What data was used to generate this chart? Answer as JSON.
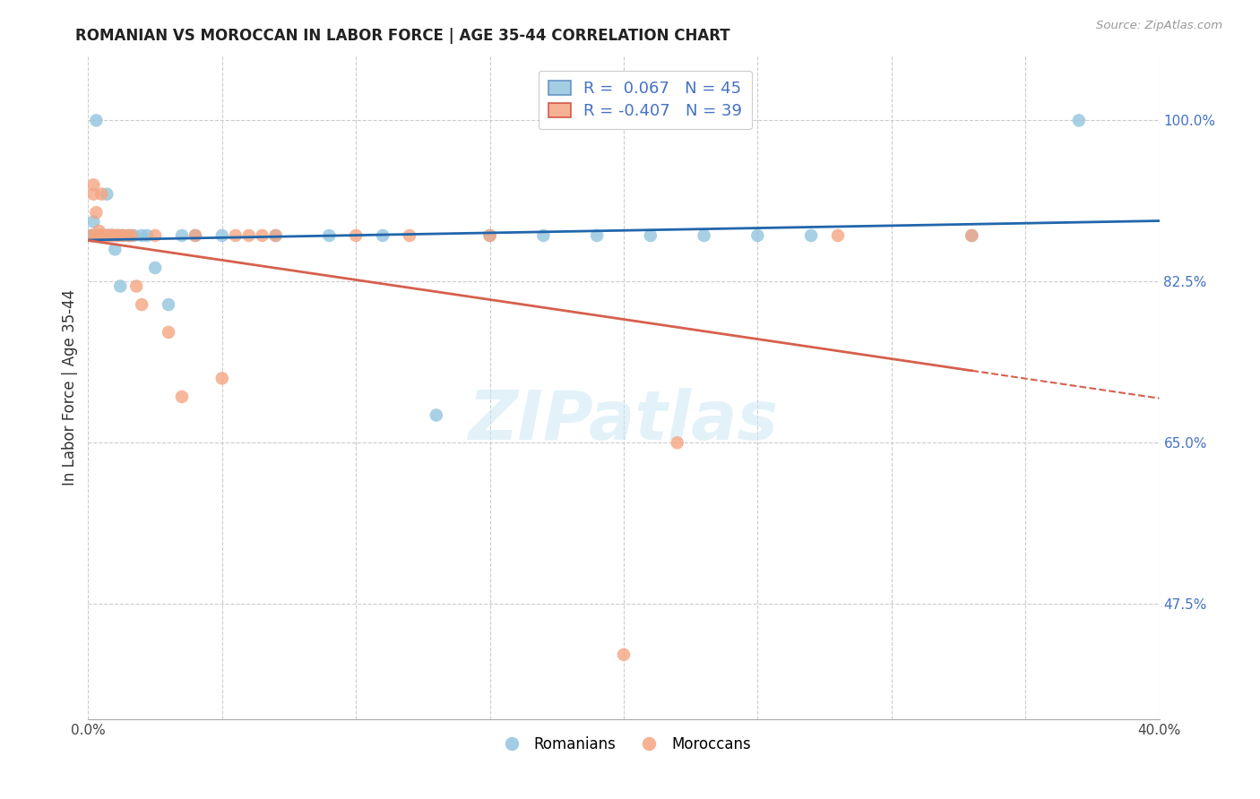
{
  "title": "ROMANIAN VS MOROCCAN IN LABOR FORCE | AGE 35-44 CORRELATION CHART",
  "source": "Source: ZipAtlas.com",
  "ylabel_label": "In Labor Force | Age 35-44",
  "xlim": [
    0.0,
    0.4
  ],
  "ylim": [
    0.35,
    1.07
  ],
  "xticks": [
    0.0,
    0.05,
    0.1,
    0.15,
    0.2,
    0.25,
    0.3,
    0.35,
    0.4
  ],
  "xticklabels": [
    "0.0%",
    "",
    "",
    "",
    "",
    "",
    "",
    "",
    "40.0%"
  ],
  "ytick_positions": [
    0.475,
    0.65,
    0.825,
    1.0
  ],
  "ytick_labels": [
    "47.5%",
    "65.0%",
    "82.5%",
    "100.0%"
  ],
  "legend_r_romanian": " 0.067",
  "legend_n_romanian": "45",
  "legend_r_moroccan": "-0.407",
  "legend_n_moroccan": "39",
  "romanian_color": "#92c5de",
  "moroccan_color": "#f4a582",
  "regression_romanian_color": "#2166ac",
  "regression_moroccan_color": "#d6604d",
  "watermark": "ZIPatlas",
  "romanians_x": [
    0.001,
    0.002,
    0.002,
    0.003,
    0.003,
    0.003,
    0.004,
    0.004,
    0.005,
    0.005,
    0.005,
    0.006,
    0.006,
    0.007,
    0.007,
    0.008,
    0.008,
    0.009,
    0.009,
    0.01,
    0.011,
    0.012,
    0.013,
    0.015,
    0.017,
    0.02,
    0.022,
    0.025,
    0.03,
    0.035,
    0.04,
    0.05,
    0.07,
    0.09,
    0.11,
    0.13,
    0.15,
    0.17,
    0.19,
    0.21,
    0.23,
    0.25,
    0.27,
    0.33,
    0.37
  ],
  "romanians_y": [
    0.875,
    0.875,
    0.89,
    0.875,
    0.875,
    1.0,
    0.875,
    0.875,
    0.875,
    0.875,
    0.875,
    0.875,
    0.875,
    0.92,
    0.875,
    0.875,
    0.875,
    0.875,
    0.875,
    0.86,
    0.875,
    0.82,
    0.875,
    0.875,
    0.875,
    0.875,
    0.875,
    0.84,
    0.8,
    0.875,
    0.875,
    0.875,
    0.875,
    0.875,
    0.875,
    0.68,
    0.875,
    0.875,
    0.875,
    0.875,
    0.875,
    0.875,
    0.875,
    0.875,
    1.0
  ],
  "moroccans_x": [
    0.001,
    0.002,
    0.002,
    0.003,
    0.003,
    0.004,
    0.004,
    0.005,
    0.005,
    0.006,
    0.006,
    0.007,
    0.007,
    0.008,
    0.009,
    0.01,
    0.011,
    0.012,
    0.013,
    0.015,
    0.016,
    0.018,
    0.02,
    0.025,
    0.03,
    0.035,
    0.04,
    0.05,
    0.055,
    0.06,
    0.065,
    0.07,
    0.1,
    0.12,
    0.15,
    0.22,
    0.28,
    0.33,
    0.2
  ],
  "moroccans_y": [
    0.875,
    0.92,
    0.93,
    0.875,
    0.9,
    0.875,
    0.88,
    0.92,
    0.875,
    0.875,
    0.875,
    0.875,
    0.875,
    0.875,
    0.875,
    0.875,
    0.875,
    0.875,
    0.875,
    0.875,
    0.875,
    0.82,
    0.8,
    0.875,
    0.77,
    0.7,
    0.875,
    0.72,
    0.875,
    0.875,
    0.875,
    0.875,
    0.875,
    0.875,
    0.875,
    0.65,
    0.875,
    0.875,
    0.42
  ]
}
